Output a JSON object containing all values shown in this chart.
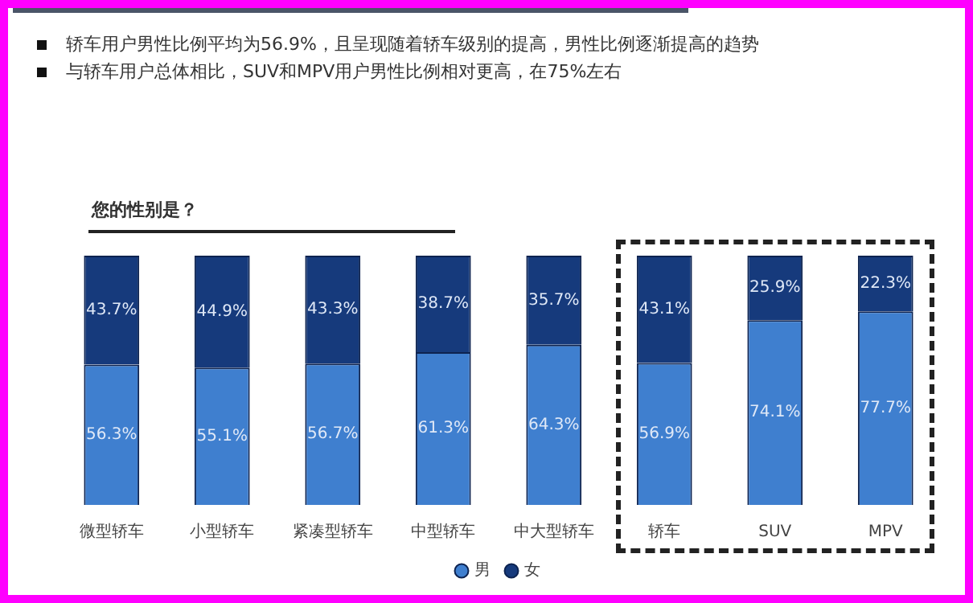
{
  "chart_data": {
    "type": "bar",
    "title": "您的性别是？",
    "annotations": [
      "轿车用户男性比例平均为56.9%，且呈现随着轿车级别的提高，男性比例逐渐提高的趋势",
      "与轿车用户总体相比，SUV和MPV用户男性比例相对更高，在75%左右"
    ],
    "categories": [
      "微型轿车",
      "小型轿车",
      "紧凑型轿车",
      "中型轿车",
      "中大型轿车",
      "轿车",
      "SUV",
      "MPV"
    ],
    "stacked": true,
    "legend": "bottom",
    "grid": false,
    "series": [
      {
        "name": "男",
        "color": "#3f7fcf",
        "values": [
          56.3,
          55.1,
          56.7,
          61.3,
          64.3,
          56.9,
          74.1,
          77.7
        ],
        "value_labels": [
          "56.3%",
          "55.1%",
          "56.7%",
          "61.3%",
          "64.3%",
          "56.9%",
          "74.1%",
          "77.7%"
        ]
      },
      {
        "name": "女",
        "color": "#163a7c",
        "values": [
          43.7,
          44.9,
          43.3,
          38.7,
          35.7,
          43.1,
          25.9,
          22.3
        ],
        "value_labels": [
          "43.7%",
          "44.9%",
          "43.3%",
          "38.7%",
          "35.7%",
          "43.1%",
          "25.9%",
          "22.3%"
        ]
      }
    ]
  }
}
